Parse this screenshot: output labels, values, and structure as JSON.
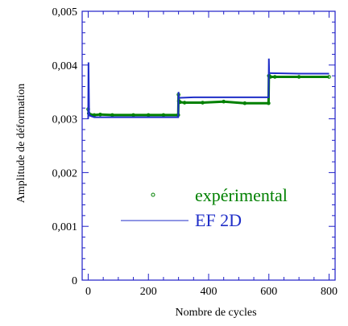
{
  "chart_data": {
    "type": "line",
    "xlabel": "Nombre de cycles",
    "ylabel": "Amplitude de déformation",
    "xlim": [
      -20,
      820
    ],
    "ylim": [
      0,
      0.005
    ],
    "x_ticks": [
      0,
      200,
      400,
      600,
      800
    ],
    "x_tick_labels": [
      "0",
      "200",
      "400",
      "600",
      "800"
    ],
    "y_ticks": [
      0,
      0.001,
      0.002,
      0.003,
      0.004,
      0.005
    ],
    "y_tick_labels": [
      "0",
      "0,001",
      "0,002",
      "0,003",
      "0,004",
      "0,005"
    ],
    "legend_position": "center-right",
    "grid": false,
    "series": [
      {
        "name": "expérimental",
        "marker": "circle",
        "color": "#008000",
        "x": [
          0,
          2,
          5,
          10,
          20,
          40,
          80,
          150,
          200,
          250,
          299,
          300,
          301,
          305,
          320,
          380,
          450,
          520,
          599,
          600,
          601,
          605,
          620,
          700,
          800
        ],
        "y": [
          0.00318,
          0.0031,
          0.00308,
          0.00307,
          0.00307,
          0.00308,
          0.00307,
          0.00307,
          0.00307,
          0.00307,
          0.00307,
          0.00345,
          0.00333,
          0.00331,
          0.0033,
          0.0033,
          0.00332,
          0.00329,
          0.00329,
          0.0038,
          0.0038,
          0.00378,
          0.00378,
          0.00378,
          0.00378
        ]
      },
      {
        "name": "EF 2D",
        "marker": "none",
        "color": "#1f2ec8",
        "x": [
          0,
          1,
          3,
          5,
          20,
          100,
          299,
          300,
          301,
          305,
          350,
          599,
          600,
          601,
          605,
          700,
          800
        ],
        "y": [
          0.003,
          0.00405,
          0.00312,
          0.00306,
          0.00303,
          0.00303,
          0.00303,
          0.0035,
          0.00339,
          0.00339,
          0.0034,
          0.0034,
          0.00412,
          0.00385,
          0.00385,
          0.00384,
          0.00384
        ]
      }
    ]
  },
  "colors": {
    "axis": "#1f1fc8",
    "tick_label": "#000000"
  }
}
